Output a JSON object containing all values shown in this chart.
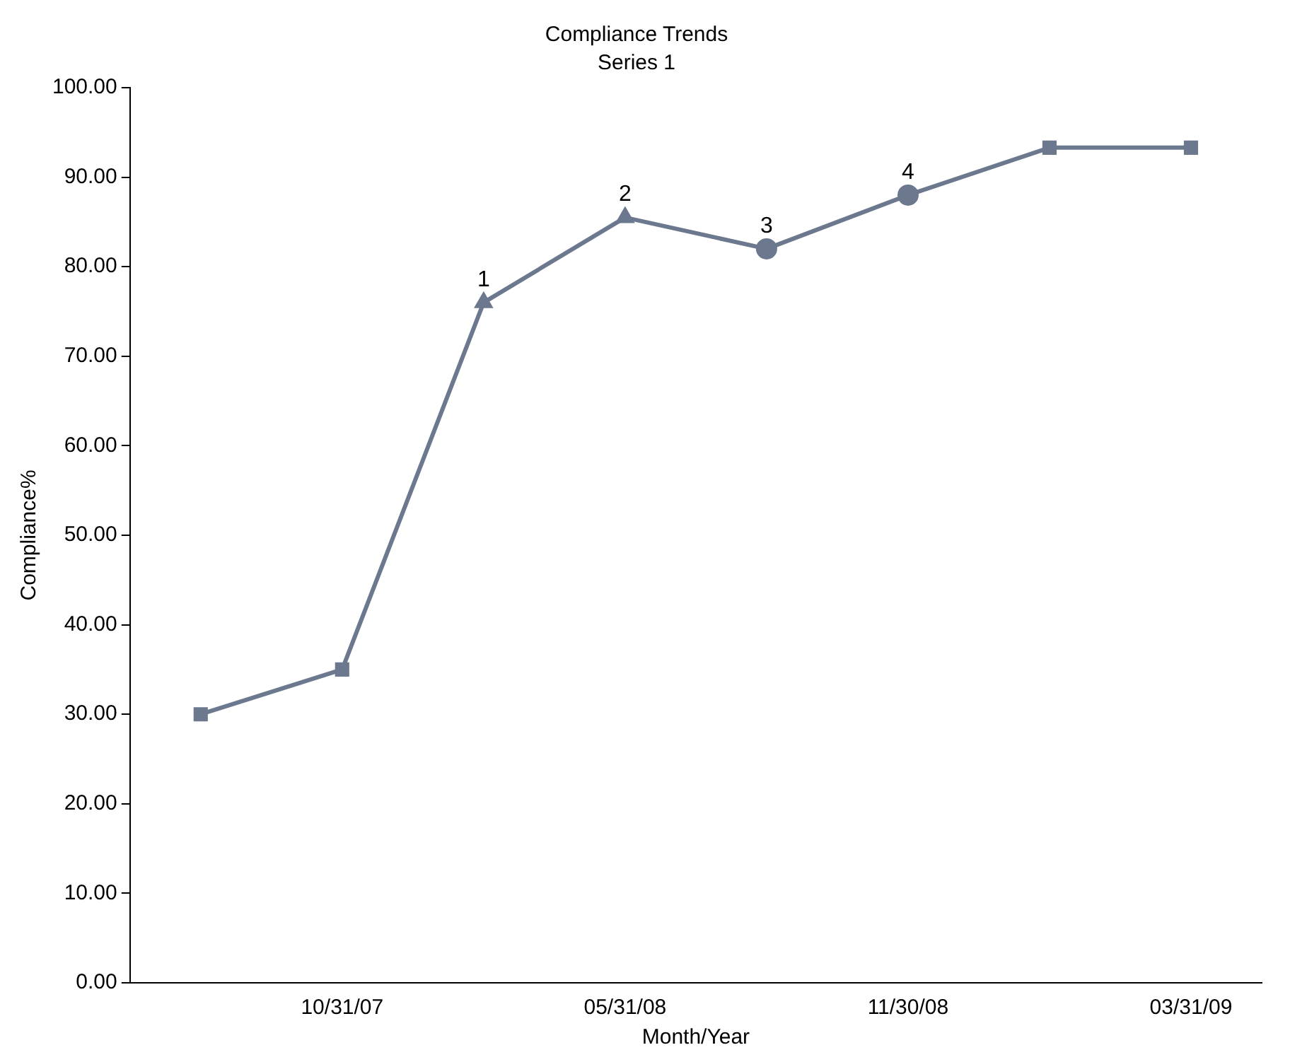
{
  "chart_data": {
    "type": "line",
    "title": "Compliance Trends",
    "subtitle": "Series 1",
    "xlabel": "Month/Year",
    "ylabel": "Compliance%",
    "categories": [
      null,
      "10/31/07",
      null,
      "05/31/08",
      null,
      "11/30/08",
      null,
      "03/31/09"
    ],
    "series": [
      {
        "type": "line",
        "marker": "square",
        "color": "#6b788e",
        "values": [
          30,
          35,
          76,
          85.5,
          82,
          88,
          93.3,
          93.3
        ]
      },
      {
        "type": "scatter",
        "marker": "triangle",
        "color": "#6b788e",
        "values": [
          null,
          null,
          76,
          85.5,
          null,
          null,
          null,
          null
        ]
      },
      {
        "type": "scatter",
        "marker": "circle",
        "color": "#6b788e",
        "values": [
          null,
          null,
          null,
          null,
          82,
          88,
          null,
          null
        ]
      }
    ],
    "annotations": [
      {
        "text": "1",
        "y": 76
      },
      {
        "text": "2",
        "y": 85.5
      },
      {
        "text": "3",
        "y": 82
      },
      {
        "text": "4",
        "y": 88
      }
    ],
    "ylim": [
      0,
      100
    ],
    "yticks": [
      {
        "value": 0,
        "label": "0.00"
      },
      {
        "value": 10,
        "label": "10.00"
      },
      {
        "value": 20,
        "label": "20.00"
      },
      {
        "value": 30,
        "label": "30.00"
      },
      {
        "value": 40,
        "label": "40.00"
      },
      {
        "value": 50,
        "label": "50.00"
      },
      {
        "value": 60,
        "label": "60.00"
      },
      {
        "value": 70,
        "label": "70.00"
      },
      {
        "value": 80,
        "label": "80.00"
      },
      {
        "value": 90,
        "label": "90.00"
      },
      {
        "value": 100,
        "label": "100.00"
      }
    ],
    "grid": false,
    "legend": false
  }
}
